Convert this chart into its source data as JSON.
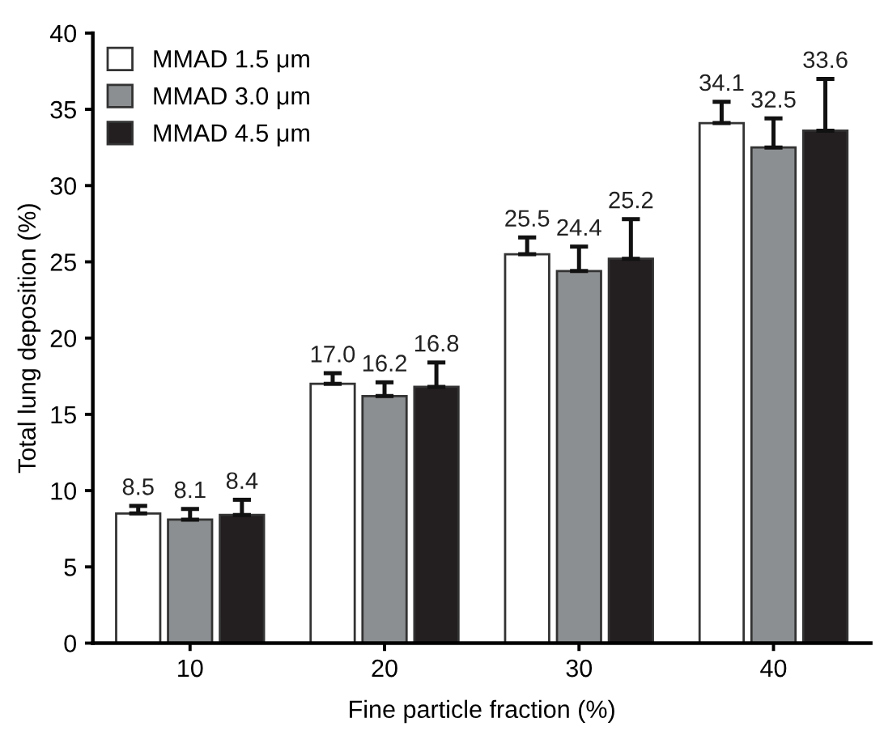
{
  "chart_data": {
    "type": "bar",
    "xlabel": "Fine particle fraction (%)",
    "ylabel": "Total lung deposition (%)",
    "categories": [
      "10",
      "20",
      "30",
      "40"
    ],
    "series": [
      {
        "name": "MMAD 1.5 μm",
        "color": "#ffffff",
        "values": [
          8.5,
          17.0,
          25.5,
          34.1
        ],
        "value_labels": [
          "8.5",
          "17.0",
          "25.5",
          "34.1"
        ],
        "errors": [
          [
            8.5,
            9.0
          ],
          [
            17.0,
            17.7
          ],
          [
            25.5,
            26.6
          ],
          [
            34.1,
            35.5
          ]
        ]
      },
      {
        "name": "MMAD 3.0 μm",
        "color": "#8c8f91",
        "values": [
          8.1,
          16.2,
          24.4,
          32.5
        ],
        "value_labels": [
          "8.1",
          "16.2",
          "24.4",
          "32.5"
        ],
        "errors": [
          [
            8.1,
            8.8
          ],
          [
            16.2,
            17.1
          ],
          [
            24.4,
            26.0
          ],
          [
            32.5,
            34.4
          ]
        ]
      },
      {
        "name": "MMAD 4.5 μm",
        "color": "#231f20",
        "values": [
          8.4,
          16.8,
          25.2,
          33.6
        ],
        "value_labels": [
          "8.4",
          "16.8",
          "25.2",
          "33.6"
        ],
        "errors": [
          [
            8.4,
            9.4
          ],
          [
            16.8,
            18.4
          ],
          [
            25.2,
            27.8
          ],
          [
            33.6,
            37.0
          ]
        ]
      }
    ],
    "ylim": [
      0,
      40
    ],
    "yticks": [
      0,
      5,
      10,
      15,
      20,
      25,
      30,
      35,
      40
    ],
    "legend": "top left",
    "grid": false
  }
}
